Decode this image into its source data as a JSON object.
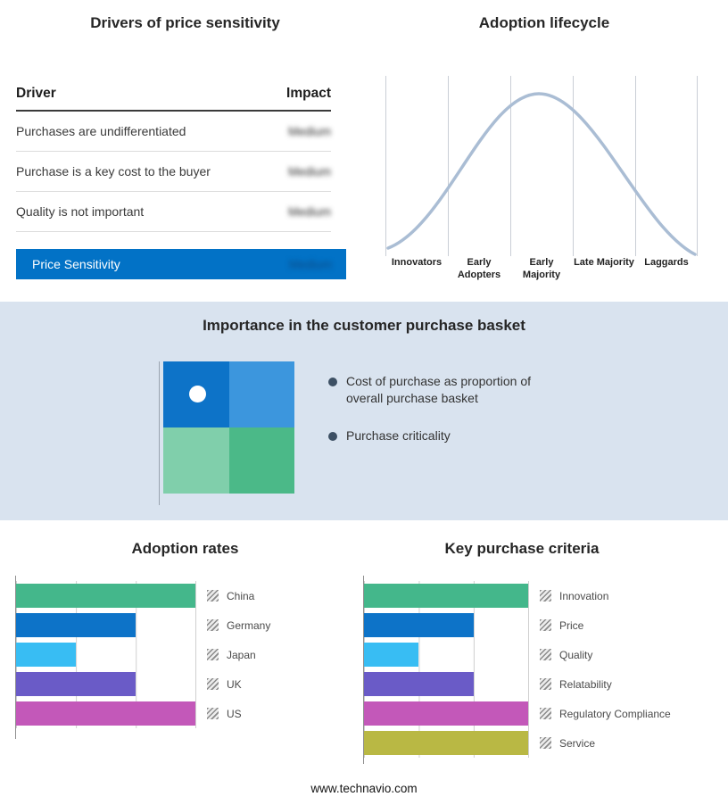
{
  "page": {
    "footer": "www.technavio.com",
    "band_bg": "#d9e3ef"
  },
  "drivers": {
    "title": "Drivers of price sensitivity",
    "columns": {
      "driver": "Driver",
      "impact": "Impact"
    },
    "rows": [
      {
        "driver": "Purchases are undifferentiated",
        "impact": "Medium"
      },
      {
        "driver": "Purchase is a key cost to the buyer",
        "impact": "Medium"
      },
      {
        "driver": "Quality is not important",
        "impact": "Medium"
      }
    ],
    "summary": {
      "label": "Price Sensitivity",
      "impact": "Medium",
      "color": "#0272c6"
    }
  },
  "lifecycle": {
    "title": "Adoption lifecycle",
    "stages": [
      "Innovators",
      "Early Adopters",
      "Early Majority",
      "Late Majority",
      "Laggards"
    ],
    "curve_color": "#aabdd4"
  },
  "basket": {
    "title": "Importance in the customer purchase basket",
    "bullets": [
      "Cost of purchase as proportion of overall purchase basket",
      "Purchase criticality"
    ],
    "quadrant_colors": [
      "#0d73c8",
      "#3c96dd",
      "#80cfab",
      "#4bb988"
    ]
  },
  "chart_data": [
    {
      "type": "bar",
      "title": "Adoption rates",
      "orientation": "horizontal",
      "categories": [
        "China",
        "Germany",
        "Japan",
        "UK",
        "US"
      ],
      "values": [
        3,
        2,
        1,
        2,
        3
      ],
      "colors": [
        "#44b78b",
        "#0d73c8",
        "#38bdf3",
        "#6a5bc7",
        "#c358b9"
      ],
      "xlim": [
        0,
        3
      ],
      "grid": true,
      "legend_position": "right"
    },
    {
      "type": "bar",
      "title": "Key purchase criteria",
      "orientation": "horizontal",
      "categories": [
        "Innovation",
        "Price",
        "Quality",
        "Relatability",
        "Regulatory Compliance",
        "Service"
      ],
      "values": [
        3,
        2,
        1,
        2,
        3,
        3
      ],
      "colors": [
        "#44b78b",
        "#0d73c8",
        "#38bdf3",
        "#6a5bc7",
        "#c358b9",
        "#b9b844"
      ],
      "xlim": [
        0,
        3
      ],
      "grid": true,
      "legend_position": "right"
    },
    {
      "type": "line",
      "title": "Adoption lifecycle",
      "categories": [
        "Innovators",
        "Early Adopters",
        "Early Majority",
        "Late Majority",
        "Laggards"
      ],
      "shape": "bell curve peaking over Early Majority"
    }
  ]
}
